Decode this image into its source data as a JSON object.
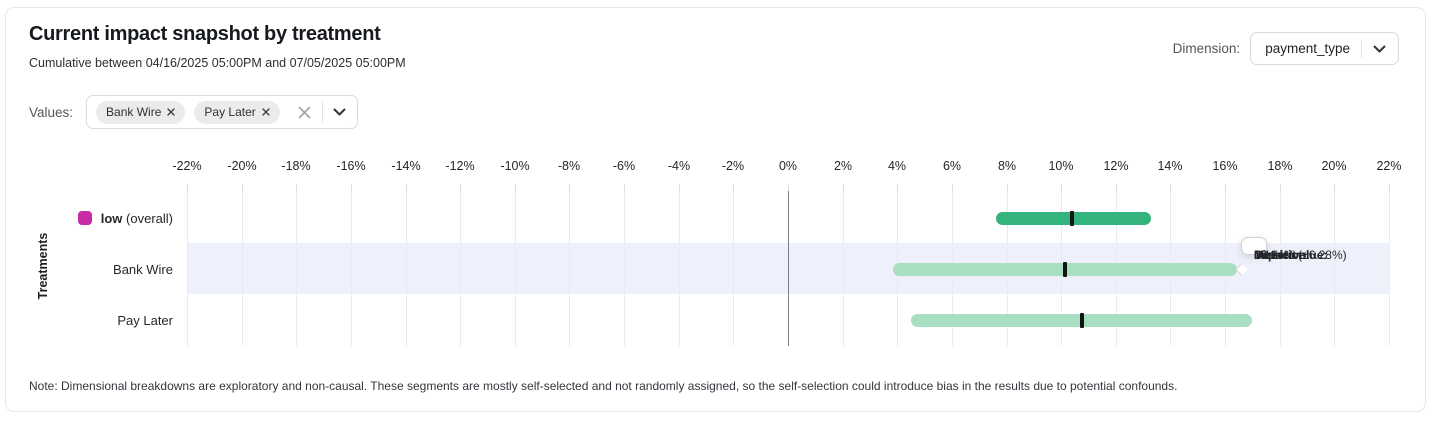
{
  "card": {
    "title": "Current impact snapshot by treatment",
    "subtitle": "Cumulative between 04/16/2025 05:00PM and 07/05/2025 05:00PM",
    "note": "Note: Dimensional breakdowns are exploratory and non-causal. These segments are mostly self-selected and not randomly assigned, so the self-selection could introduce bias in the results due to potential confounds."
  },
  "dimension": {
    "label": "Dimension:",
    "selected": "payment_type"
  },
  "values_filter": {
    "label": "Values:",
    "chips": [
      {
        "label": "Bank Wire"
      },
      {
        "label": "Pay Later"
      }
    ]
  },
  "tooltip": {
    "direction_label": "Direction:",
    "direction_value": "Desired",
    "impact_label": "Impact:",
    "impact_value": "10.14% (±6.28%)",
    "metric_label": "Metric value:",
    "metric_value": "0.18"
  },
  "chart_data": {
    "type": "bar",
    "subtype": "horizontal-confidence-intervals",
    "title": "Current impact snapshot by treatment",
    "xlabel": "",
    "ylabel": "Treatments",
    "x_unit": "%",
    "xlim": [
      -22,
      22
    ],
    "x_ticks": [
      -22,
      -20,
      -18,
      -16,
      -14,
      -12,
      -10,
      -8,
      -6,
      -4,
      -2,
      0,
      2,
      4,
      6,
      8,
      10,
      12,
      14,
      16,
      18,
      20,
      22
    ],
    "grid": true,
    "zero_line": true,
    "rows": [
      {
        "label_bold": "low",
        "label_rest": "(overall)",
        "swatch_color": "#c92aa6",
        "bar_color": "#32b47c",
        "impact": 10.4,
        "ci_low": 7.6,
        "ci_high": 13.3,
        "highlighted": false
      },
      {
        "label": "Bank Wire",
        "bar_color": "#a8dfc0",
        "impact": 10.14,
        "ci_low": 3.86,
        "ci_high": 16.42,
        "highlighted": true
      },
      {
        "label": "Pay Later",
        "bar_color": "#a8dfc0",
        "impact": 10.76,
        "ci_low": 4.5,
        "ci_high": 17.0,
        "highlighted": false
      }
    ],
    "tooltip_on_row": "Bank Wire",
    "colors": {
      "overall_bar": "#32b47c",
      "segment_bar": "#a8dfc0",
      "median_marker": "#121417",
      "highlight_band": "#eef0fb",
      "legend_swatch": "#c92aa6"
    }
  }
}
